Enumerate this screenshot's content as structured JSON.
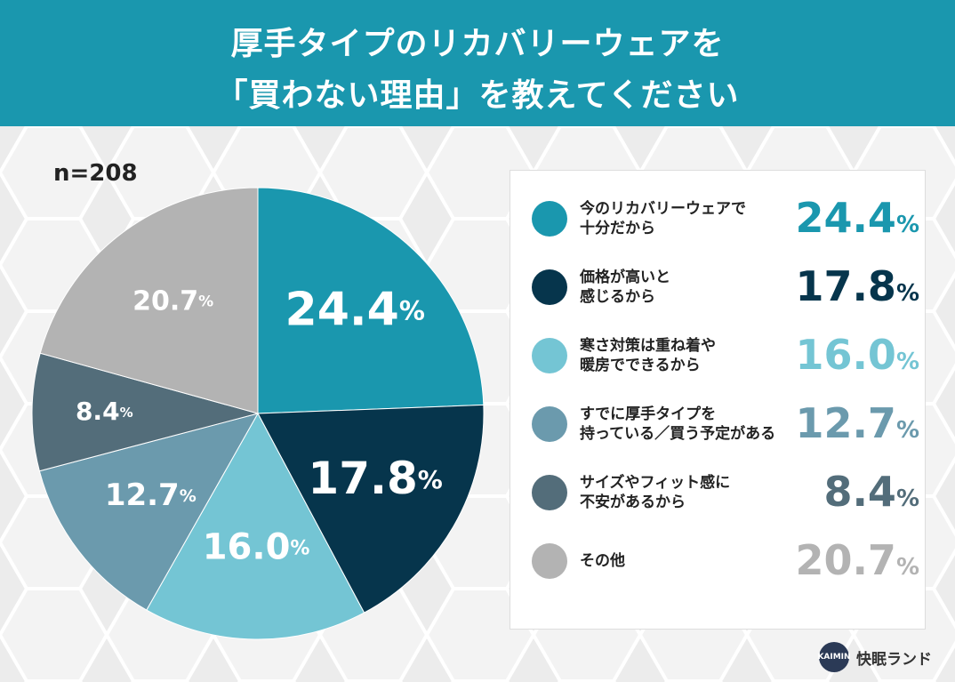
{
  "header": {
    "line1": "厚手タイプのリカバリーウェアを",
    "line2": "「買わない理由」を教えてください"
  },
  "sample_size": "n=208",
  "chart_data": {
    "type": "pie",
    "title": "厚手タイプのリカバリーウェアを「買わない理由」を教えてください",
    "unit": "%",
    "slices": [
      {
        "label": "今のリカバリーウェアで\n十分だから",
        "value": 24.4,
        "value_text": "24.4",
        "color": "#1a97ae"
      },
      {
        "label": "価格が高いと\n感じるから",
        "value": 17.8,
        "value_text": "17.8",
        "color": "#06354c"
      },
      {
        "label": "寒さ対策は重ね着や\n暖房でできるから",
        "value": 16.0,
        "value_text": "16.0",
        "color": "#74c5d4"
      },
      {
        "label": "すでに厚手タイプを\n持っている／買う予定がある",
        "value": 12.7,
        "value_text": "12.7",
        "color": "#6b9aad"
      },
      {
        "label": "サイズやフィット感に\n不安があるから",
        "value": 8.4,
        "value_text": "8.4",
        "color": "#536d7a"
      },
      {
        "label": "その他",
        "value": 20.7,
        "value_text": "20.7",
        "color": "#b3b3b3"
      }
    ]
  },
  "percent_sign": "%",
  "brand": {
    "name": "快眠ランド",
    "logo_text": "KAIMIN"
  }
}
